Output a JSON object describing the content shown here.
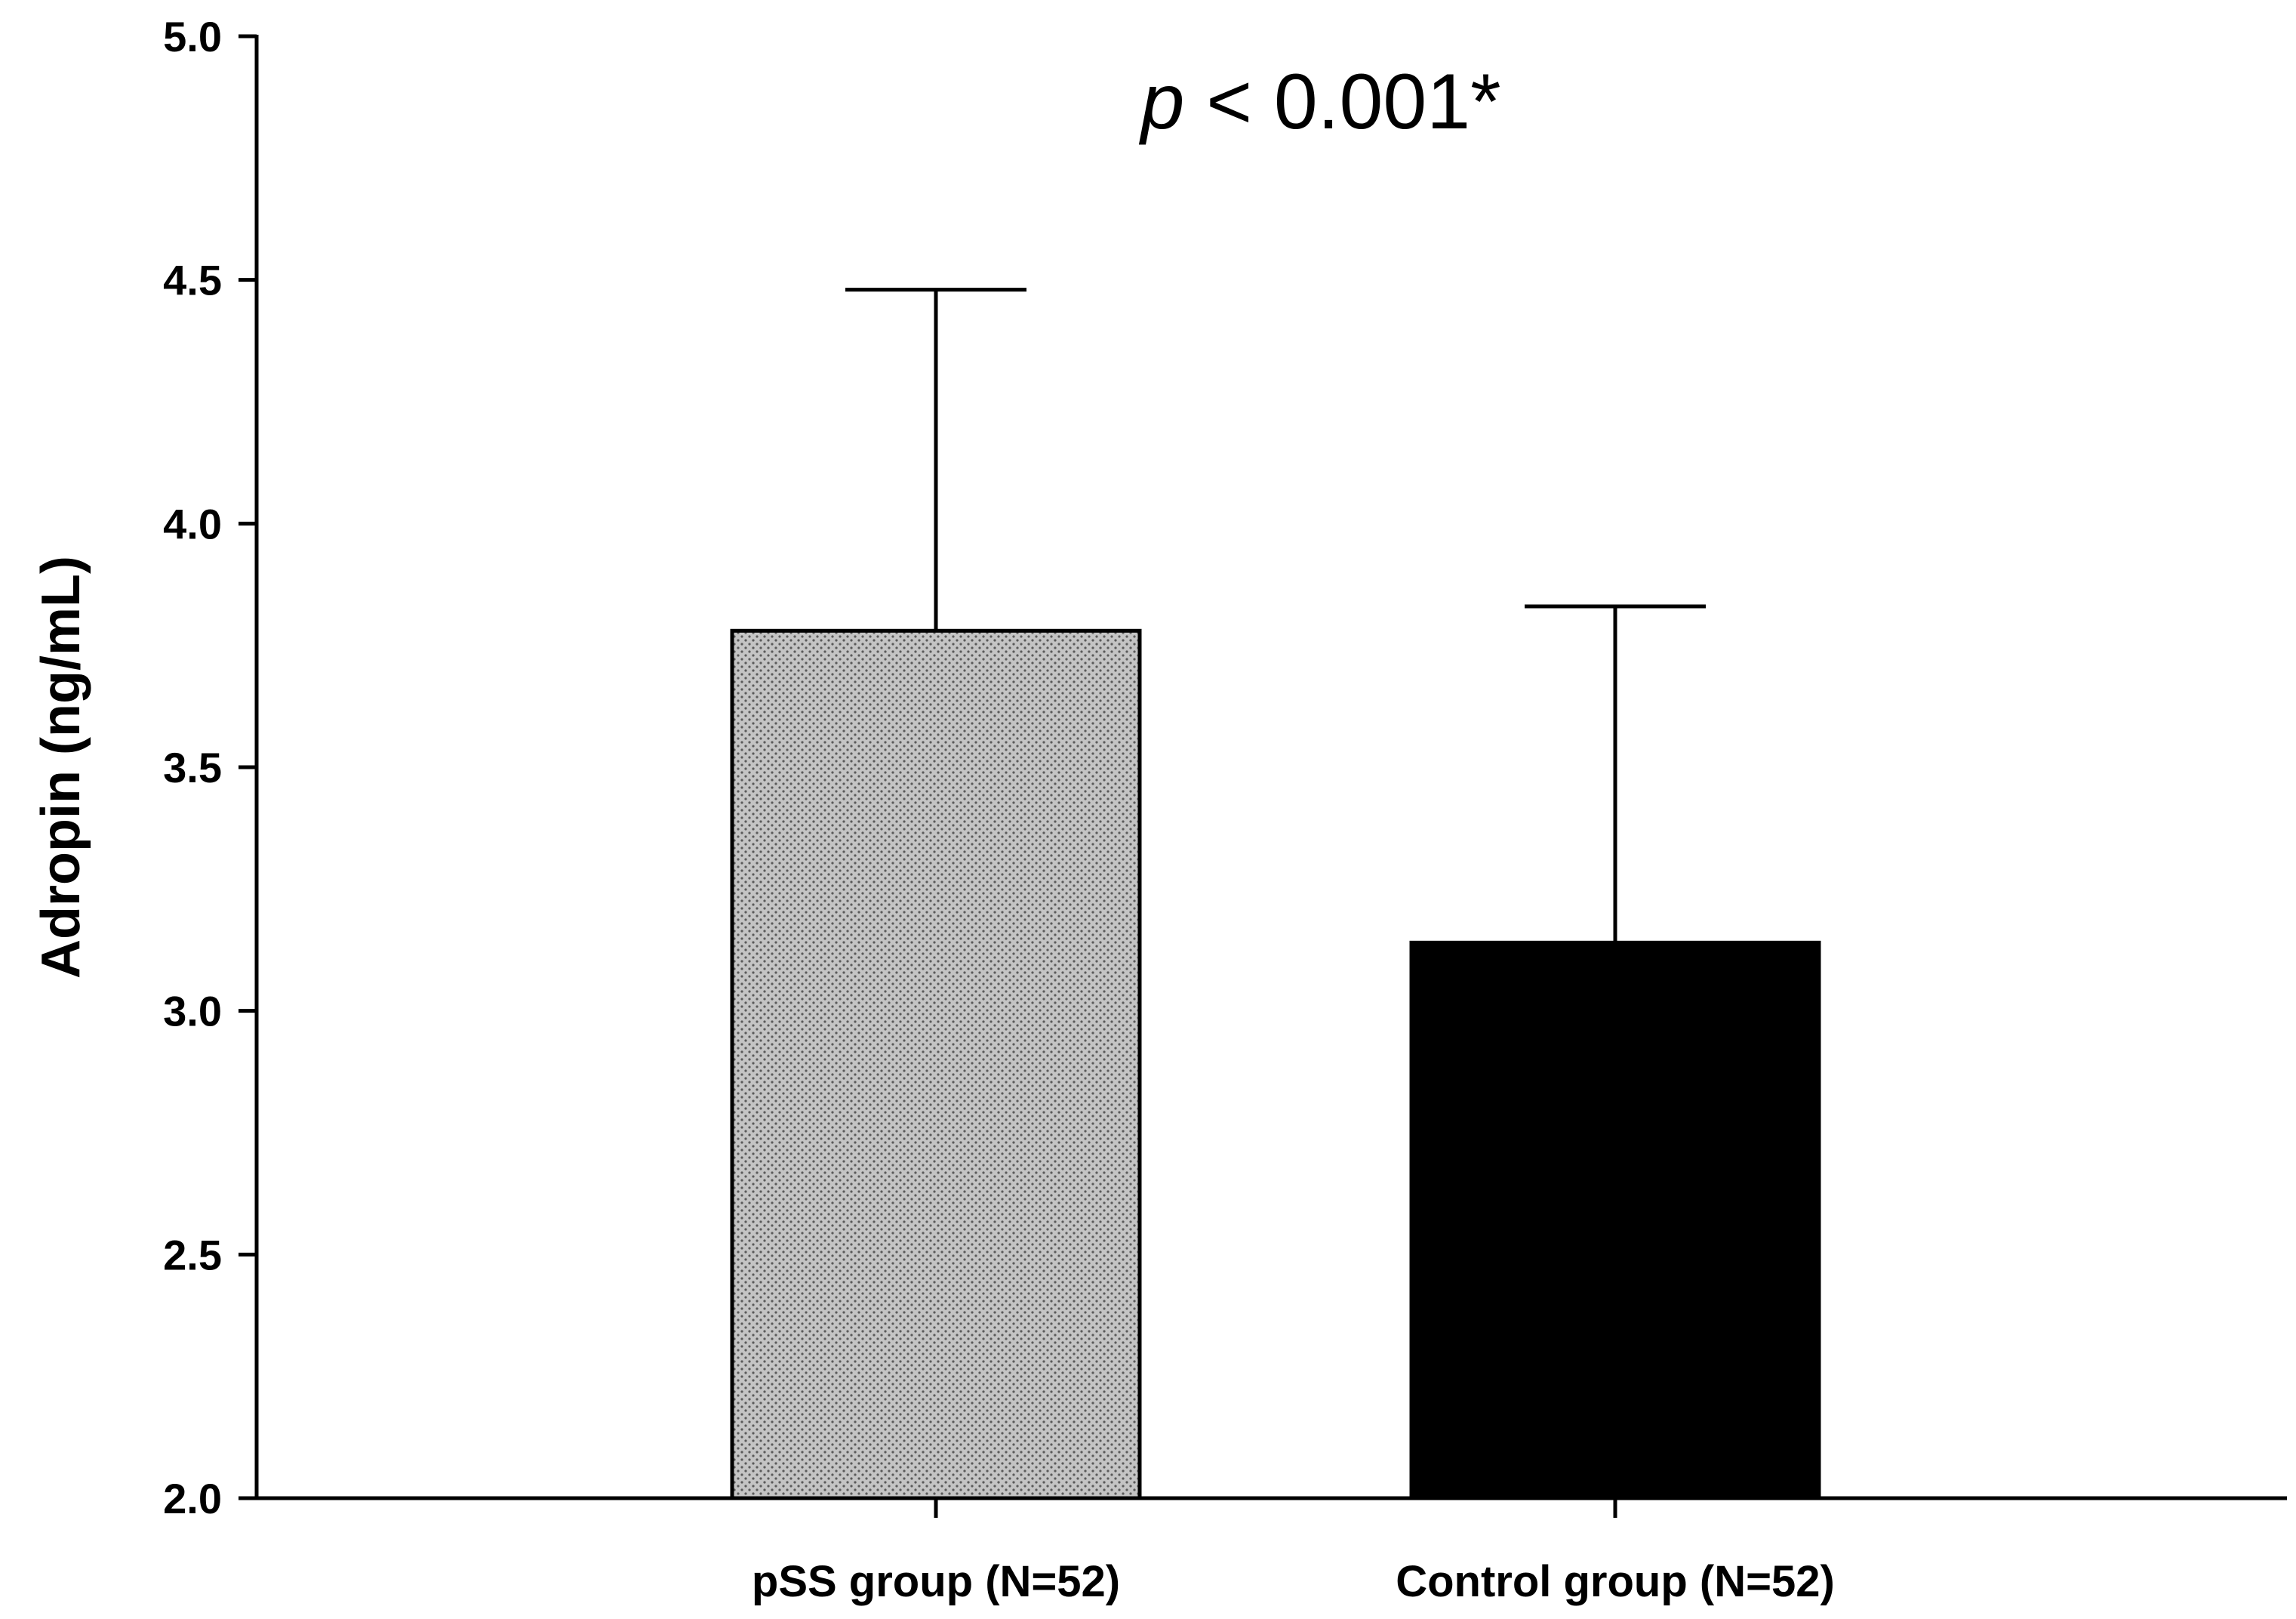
{
  "chart_data": {
    "type": "bar",
    "categories": [
      "pSS group (N=52)",
      "Control group (N=52)"
    ],
    "values": [
      3.78,
      3.14
    ],
    "error_upper": [
      4.48,
      3.83
    ],
    "bar_colors": [
      "#c0c0c0",
      "#000000"
    ],
    "bar_patterns": [
      "dotted",
      "solid"
    ],
    "title": "",
    "xlabel": "",
    "ylabel": "Adropin (ng/mL)",
    "ylim": [
      2.0,
      5.0
    ],
    "yticks": [
      "2.0",
      "2.5",
      "3.0",
      "3.5",
      "4.0",
      "4.5",
      "5.0"
    ],
    "grid": false,
    "annotation": {
      "italic_part": "p",
      "rest": " < 0.001*"
    }
  }
}
